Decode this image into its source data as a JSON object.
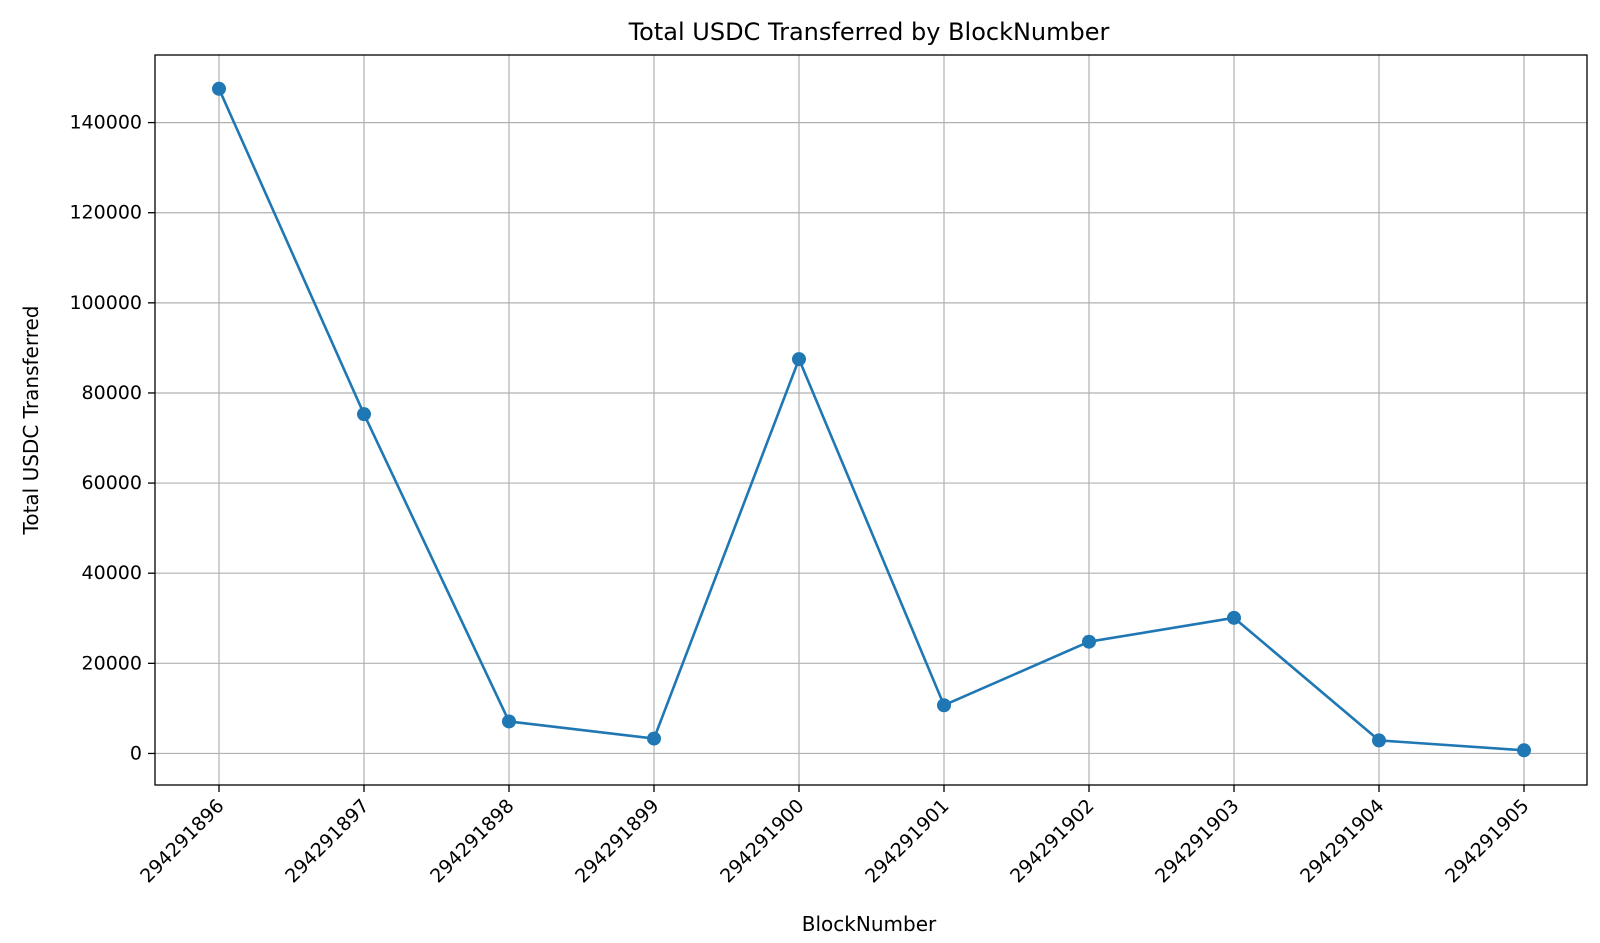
{
  "chart_data": {
    "type": "line",
    "title": "Total USDC Transferred by BlockNumber",
    "xlabel": "BlockNumber",
    "ylabel": "Total USDC Transferred",
    "categories": [
      "294291896",
      "294291897",
      "294291898",
      "294291899",
      "294291900",
      "294291901",
      "294291902",
      "294291903",
      "294291904",
      "294291905"
    ],
    "series": [
      {
        "values": [
          147500,
          75300,
          7100,
          3300,
          87500,
          10700,
          24800,
          30100,
          2900,
          700
        ]
      }
    ],
    "ylim": [
      -7000,
      155000
    ],
    "yticks": [
      "0",
      "20000",
      "40000",
      "60000",
      "80000",
      "100000",
      "120000",
      "140000"
    ],
    "ytick_values": [
      0,
      20000,
      40000,
      60000,
      80000,
      100000,
      120000,
      140000
    ],
    "grid": true,
    "marker": "circle",
    "color": "#1f77b4"
  }
}
